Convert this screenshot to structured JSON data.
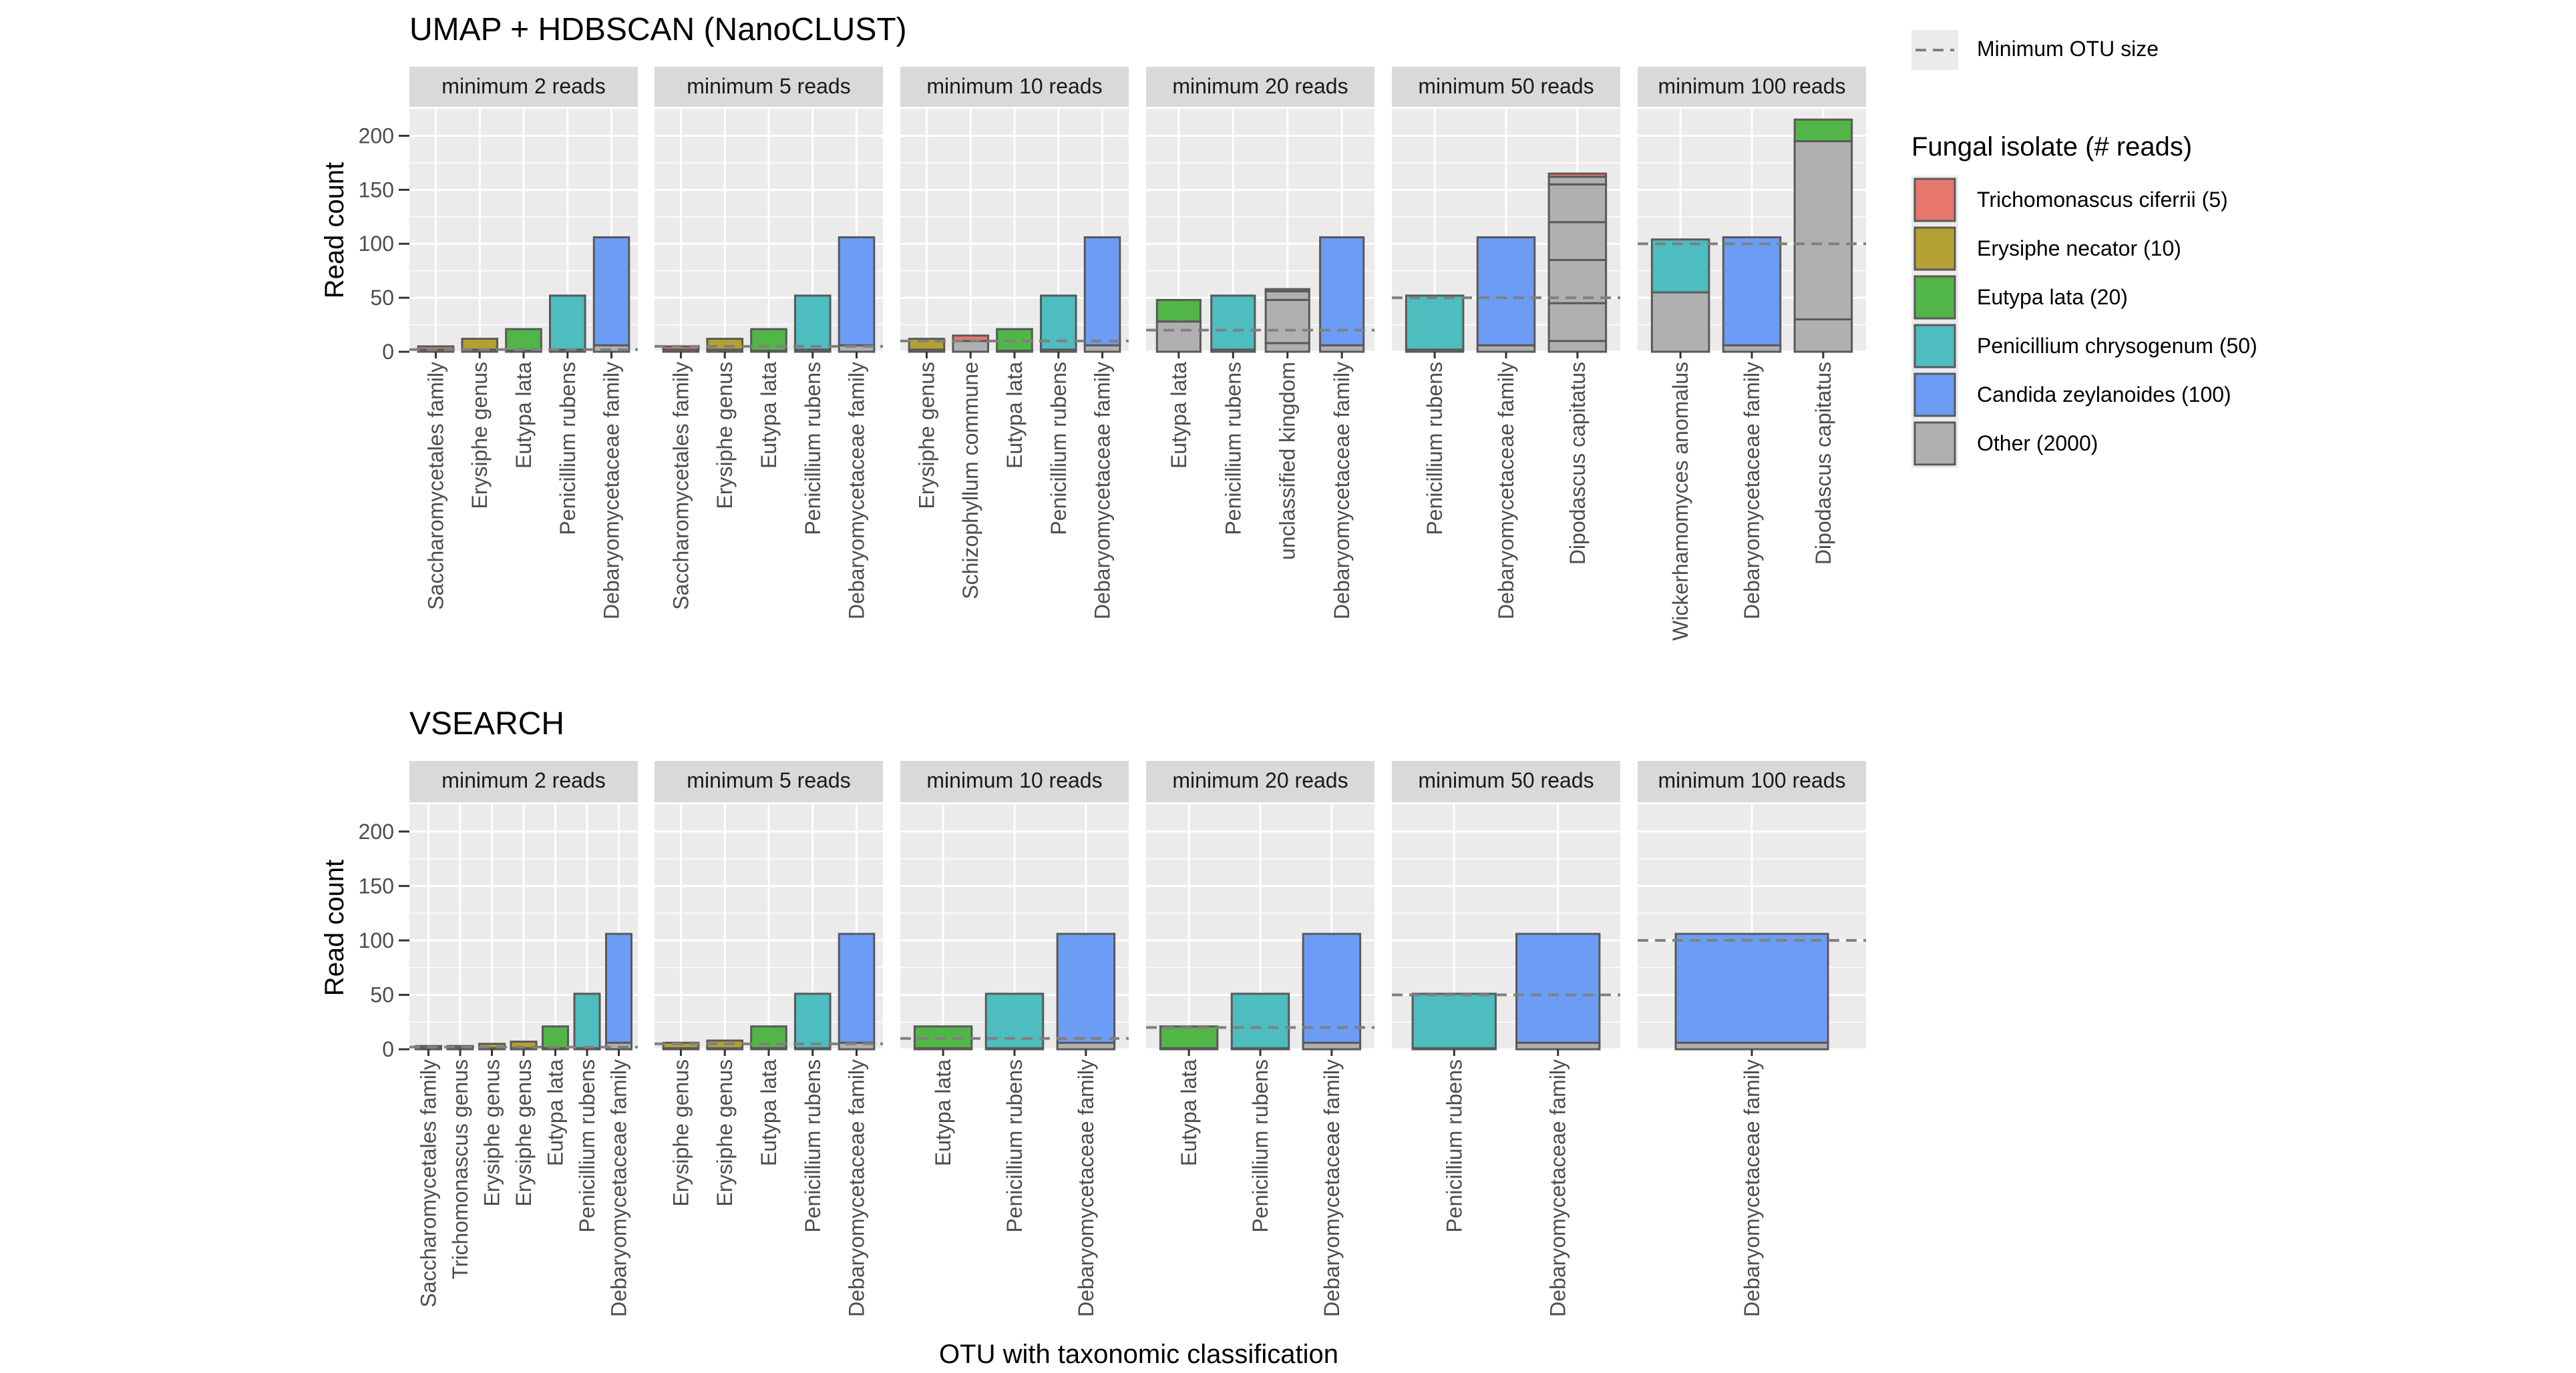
{
  "chart_data": {
    "type": "bar",
    "stacked": true,
    "ylabel": "Read count",
    "xlabel": "OTU with taxonomic classification",
    "ylim": [
      0,
      225
    ],
    "y_ticks": [
      0,
      50,
      100,
      150,
      200
    ],
    "legend": {
      "line_label": "Minimum OTU size",
      "title": "Fungal isolate (# reads)",
      "entries": [
        {
          "key": "tc",
          "label": "Trichomonascus ciferrii (5)",
          "color": "#E8776F"
        },
        {
          "key": "en",
          "label": "Erysiphe necator (10)",
          "color": "#B5A033"
        },
        {
          "key": "el",
          "label": "Eutypa lata (20)",
          "color": "#52B547"
        },
        {
          "key": "pc",
          "label": "Penicillium chrysogenum (50)",
          "color": "#4DBDBF"
        },
        {
          "key": "cz",
          "label": "Candida zeylanoides (100)",
          "color": "#6D9CF5"
        },
        {
          "key": "ot",
          "label": "Other (2000)",
          "color": "#B0B0B0"
        }
      ]
    },
    "rows": [
      {
        "title": "UMAP + HDBSCAN (NanoCLUST)",
        "panels": [
          {
            "label": "minimum 2 reads",
            "min_otu": 2,
            "bars": [
              {
                "label": "Saccharomycetales family",
                "segments": [
                  {
                    "key": "ot",
                    "value": 2
                  },
                  {
                    "key": "tc",
                    "value": 3
                  }
                ]
              },
              {
                "label": "Erysiphe genus",
                "segments": [
                  {
                    "key": "ot",
                    "value": 2
                  },
                  {
                    "key": "en",
                    "value": 10
                  }
                ]
              },
              {
                "label": "Eutypa lata",
                "segments": [
                  {
                    "key": "ot",
                    "value": 1
                  },
                  {
                    "key": "el",
                    "value": 20
                  }
                ]
              },
              {
                "label": "Penicillium rubens",
                "segments": [
                  {
                    "key": "ot",
                    "value": 2
                  },
                  {
                    "key": "pc",
                    "value": 50
                  }
                ]
              },
              {
                "label": "Debaryomycetaceae family",
                "segments": [
                  {
                    "key": "ot",
                    "value": 6
                  },
                  {
                    "key": "cz",
                    "value": 100
                  }
                ]
              }
            ]
          },
          {
            "label": "minimum 5 reads",
            "min_otu": 5,
            "bars": [
              {
                "label": "Saccharomycetales family",
                "segments": [
                  {
                    "key": "ot",
                    "value": 2
                  },
                  {
                    "key": "tc",
                    "value": 3
                  }
                ]
              },
              {
                "label": "Erysiphe genus",
                "segments": [
                  {
                    "key": "ot",
                    "value": 2
                  },
                  {
                    "key": "en",
                    "value": 10
                  }
                ]
              },
              {
                "label": "Eutypa lata",
                "segments": [
                  {
                    "key": "ot",
                    "value": 1
                  },
                  {
                    "key": "el",
                    "value": 20
                  }
                ]
              },
              {
                "label": "Penicillium rubens",
                "segments": [
                  {
                    "key": "ot",
                    "value": 2
                  },
                  {
                    "key": "pc",
                    "value": 50
                  }
                ]
              },
              {
                "label": "Debaryomycetaceae family",
                "segments": [
                  {
                    "key": "ot",
                    "value": 6
                  },
                  {
                    "key": "cz",
                    "value": 100
                  }
                ]
              }
            ]
          },
          {
            "label": "minimum 10 reads",
            "min_otu": 10,
            "bars": [
              {
                "label": "Erysiphe genus",
                "segments": [
                  {
                    "key": "ot",
                    "value": 2
                  },
                  {
                    "key": "en",
                    "value": 10
                  }
                ]
              },
              {
                "label": "Schizophyllum commune",
                "segments": [
                  {
                    "key": "ot",
                    "value": 10
                  },
                  {
                    "key": "tc",
                    "value": 5
                  }
                ]
              },
              {
                "label": "Eutypa lata",
                "segments": [
                  {
                    "key": "ot",
                    "value": 1
                  },
                  {
                    "key": "el",
                    "value": 20
                  }
                ]
              },
              {
                "label": "Penicillium rubens",
                "segments": [
                  {
                    "key": "ot",
                    "value": 2
                  },
                  {
                    "key": "pc",
                    "value": 50
                  }
                ]
              },
              {
                "label": "Debaryomycetaceae family",
                "segments": [
                  {
                    "key": "ot",
                    "value": 6
                  },
                  {
                    "key": "cz",
                    "value": 100
                  }
                ]
              }
            ]
          },
          {
            "label": "minimum 20 reads",
            "min_otu": 20,
            "bars": [
              {
                "label": "Eutypa lata",
                "segments": [
                  {
                    "key": "ot",
                    "value": 28
                  },
                  {
                    "key": "el",
                    "value": 20
                  }
                ]
              },
              {
                "label": "Penicillium rubens",
                "segments": [
                  {
                    "key": "ot",
                    "value": 2
                  },
                  {
                    "key": "pc",
                    "value": 50
                  }
                ]
              },
              {
                "label": "unclassified kingdom",
                "segments": [
                  {
                    "key": "ot",
                    "value": 8
                  },
                  {
                    "key": "ot",
                    "value": 40
                  },
                  {
                    "key": "ot",
                    "value": 8
                  },
                  {
                    "key": "tc",
                    "value": 2
                  }
                ]
              },
              {
                "label": "Debaryomycetaceae family",
                "segments": [
                  {
                    "key": "ot",
                    "value": 6
                  },
                  {
                    "key": "cz",
                    "value": 100
                  }
                ]
              }
            ]
          },
          {
            "label": "minimum 50 reads",
            "min_otu": 50,
            "bars": [
              {
                "label": "Penicillium rubens",
                "segments": [
                  {
                    "key": "ot",
                    "value": 2
                  },
                  {
                    "key": "pc",
                    "value": 50
                  }
                ]
              },
              {
                "label": "Debaryomycetaceae family",
                "segments": [
                  {
                    "key": "ot",
                    "value": 6
                  },
                  {
                    "key": "cz",
                    "value": 100
                  }
                ]
              },
              {
                "label": "Dipodascus capitatus",
                "segments": [
                  {
                    "key": "ot",
                    "value": 10
                  },
                  {
                    "key": "ot",
                    "value": 35
                  },
                  {
                    "key": "ot",
                    "value": 40
                  },
                  {
                    "key": "ot",
                    "value": 35
                  },
                  {
                    "key": "ot",
                    "value": 35
                  },
                  {
                    "key": "ot",
                    "value": 7
                  },
                  {
                    "key": "tc",
                    "value": 3
                  }
                ]
              }
            ]
          },
          {
            "label": "minimum 100 reads",
            "min_otu": 100,
            "bars": [
              {
                "label": "Wickerhamomyces anomalus",
                "segments": [
                  {
                    "key": "ot",
                    "value": 55
                  },
                  {
                    "key": "pc",
                    "value": 49
                  }
                ]
              },
              {
                "label": "Debaryomycetaceae family",
                "segments": [
                  {
                    "key": "ot",
                    "value": 6
                  },
                  {
                    "key": "cz",
                    "value": 100
                  }
                ]
              },
              {
                "label": "Dipodascus capitatus",
                "segments": [
                  {
                    "key": "ot",
                    "value": 30
                  },
                  {
                    "key": "ot",
                    "value": 165
                  },
                  {
                    "key": "el",
                    "value": 20
                  }
                ]
              }
            ]
          }
        ]
      },
      {
        "title": "VSEARCH",
        "panels": [
          {
            "label": "minimum 2 reads",
            "min_otu": 2,
            "bars": [
              {
                "label": "Saccharomycetales family",
                "segments": [
                  {
                    "key": "ot",
                    "value": 1
                  },
                  {
                    "key": "tc",
                    "value": 2
                  }
                ]
              },
              {
                "label": "Trichomonascus genus",
                "segments": [
                  {
                    "key": "ot",
                    "value": 1
                  },
                  {
                    "key": "tc",
                    "value": 2
                  }
                ]
              },
              {
                "label": "Erysiphe genus",
                "segments": [
                  {
                    "key": "ot",
                    "value": 1
                  },
                  {
                    "key": "en",
                    "value": 4
                  }
                ]
              },
              {
                "label": "Erysiphe genus",
                "segments": [
                  {
                    "key": "ot",
                    "value": 1
                  },
                  {
                    "key": "en",
                    "value": 6
                  }
                ]
              },
              {
                "label": "Eutypa lata",
                "segments": [
                  {
                    "key": "ot",
                    "value": 1
                  },
                  {
                    "key": "el",
                    "value": 20
                  }
                ]
              },
              {
                "label": "Penicillium rubens",
                "segments": [
                  {
                    "key": "ot",
                    "value": 1
                  },
                  {
                    "key": "pc",
                    "value": 50
                  }
                ]
              },
              {
                "label": "Debaryomycetaceae family",
                "segments": [
                  {
                    "key": "ot",
                    "value": 6
                  },
                  {
                    "key": "cz",
                    "value": 100
                  }
                ]
              }
            ]
          },
          {
            "label": "minimum 5 reads",
            "min_otu": 5,
            "bars": [
              {
                "label": "Erysiphe genus",
                "segments": [
                  {
                    "key": "ot",
                    "value": 1
                  },
                  {
                    "key": "en",
                    "value": 5
                  }
                ]
              },
              {
                "label": "Erysiphe genus",
                "segments": [
                  {
                    "key": "ot",
                    "value": 1
                  },
                  {
                    "key": "en",
                    "value": 7
                  }
                ]
              },
              {
                "label": "Eutypa lata",
                "segments": [
                  {
                    "key": "ot",
                    "value": 1
                  },
                  {
                    "key": "el",
                    "value": 20
                  }
                ]
              },
              {
                "label": "Penicillium rubens",
                "segments": [
                  {
                    "key": "ot",
                    "value": 1
                  },
                  {
                    "key": "pc",
                    "value": 50
                  }
                ]
              },
              {
                "label": "Debaryomycetaceae family",
                "segments": [
                  {
                    "key": "ot",
                    "value": 6
                  },
                  {
                    "key": "cz",
                    "value": 100
                  }
                ]
              }
            ]
          },
          {
            "label": "minimum 10 reads",
            "min_otu": 10,
            "bars": [
              {
                "label": "Eutypa lata",
                "segments": [
                  {
                    "key": "ot",
                    "value": 1
                  },
                  {
                    "key": "el",
                    "value": 20
                  }
                ]
              },
              {
                "label": "Penicillium rubens",
                "segments": [
                  {
                    "key": "ot",
                    "value": 1
                  },
                  {
                    "key": "pc",
                    "value": 50
                  }
                ]
              },
              {
                "label": "Debaryomycetaceae family",
                "segments": [
                  {
                    "key": "ot",
                    "value": 6
                  },
                  {
                    "key": "cz",
                    "value": 100
                  }
                ]
              }
            ]
          },
          {
            "label": "minimum 20 reads",
            "min_otu": 20,
            "bars": [
              {
                "label": "Eutypa lata",
                "segments": [
                  {
                    "key": "ot",
                    "value": 1
                  },
                  {
                    "key": "el",
                    "value": 20
                  }
                ]
              },
              {
                "label": "Penicillium rubens",
                "segments": [
                  {
                    "key": "ot",
                    "value": 1
                  },
                  {
                    "key": "pc",
                    "value": 50
                  }
                ]
              },
              {
                "label": "Debaryomycetaceae family",
                "segments": [
                  {
                    "key": "ot",
                    "value": 6
                  },
                  {
                    "key": "cz",
                    "value": 100
                  }
                ]
              }
            ]
          },
          {
            "label": "minimum 50 reads",
            "min_otu": 50,
            "bars": [
              {
                "label": "Penicillium rubens",
                "segments": [
                  {
                    "key": "ot",
                    "value": 1
                  },
                  {
                    "key": "pc",
                    "value": 50
                  }
                ]
              },
              {
                "label": "Debaryomycetaceae family",
                "segments": [
                  {
                    "key": "ot",
                    "value": 6
                  },
                  {
                    "key": "cz",
                    "value": 100
                  }
                ]
              }
            ]
          },
          {
            "label": "minimum 100 reads",
            "min_otu": 100,
            "bars": [
              {
                "label": "Debaryomycetaceae family",
                "segments": [
                  {
                    "key": "ot",
                    "value": 6
                  },
                  {
                    "key": "cz",
                    "value": 100
                  }
                ]
              }
            ]
          }
        ]
      }
    ]
  }
}
